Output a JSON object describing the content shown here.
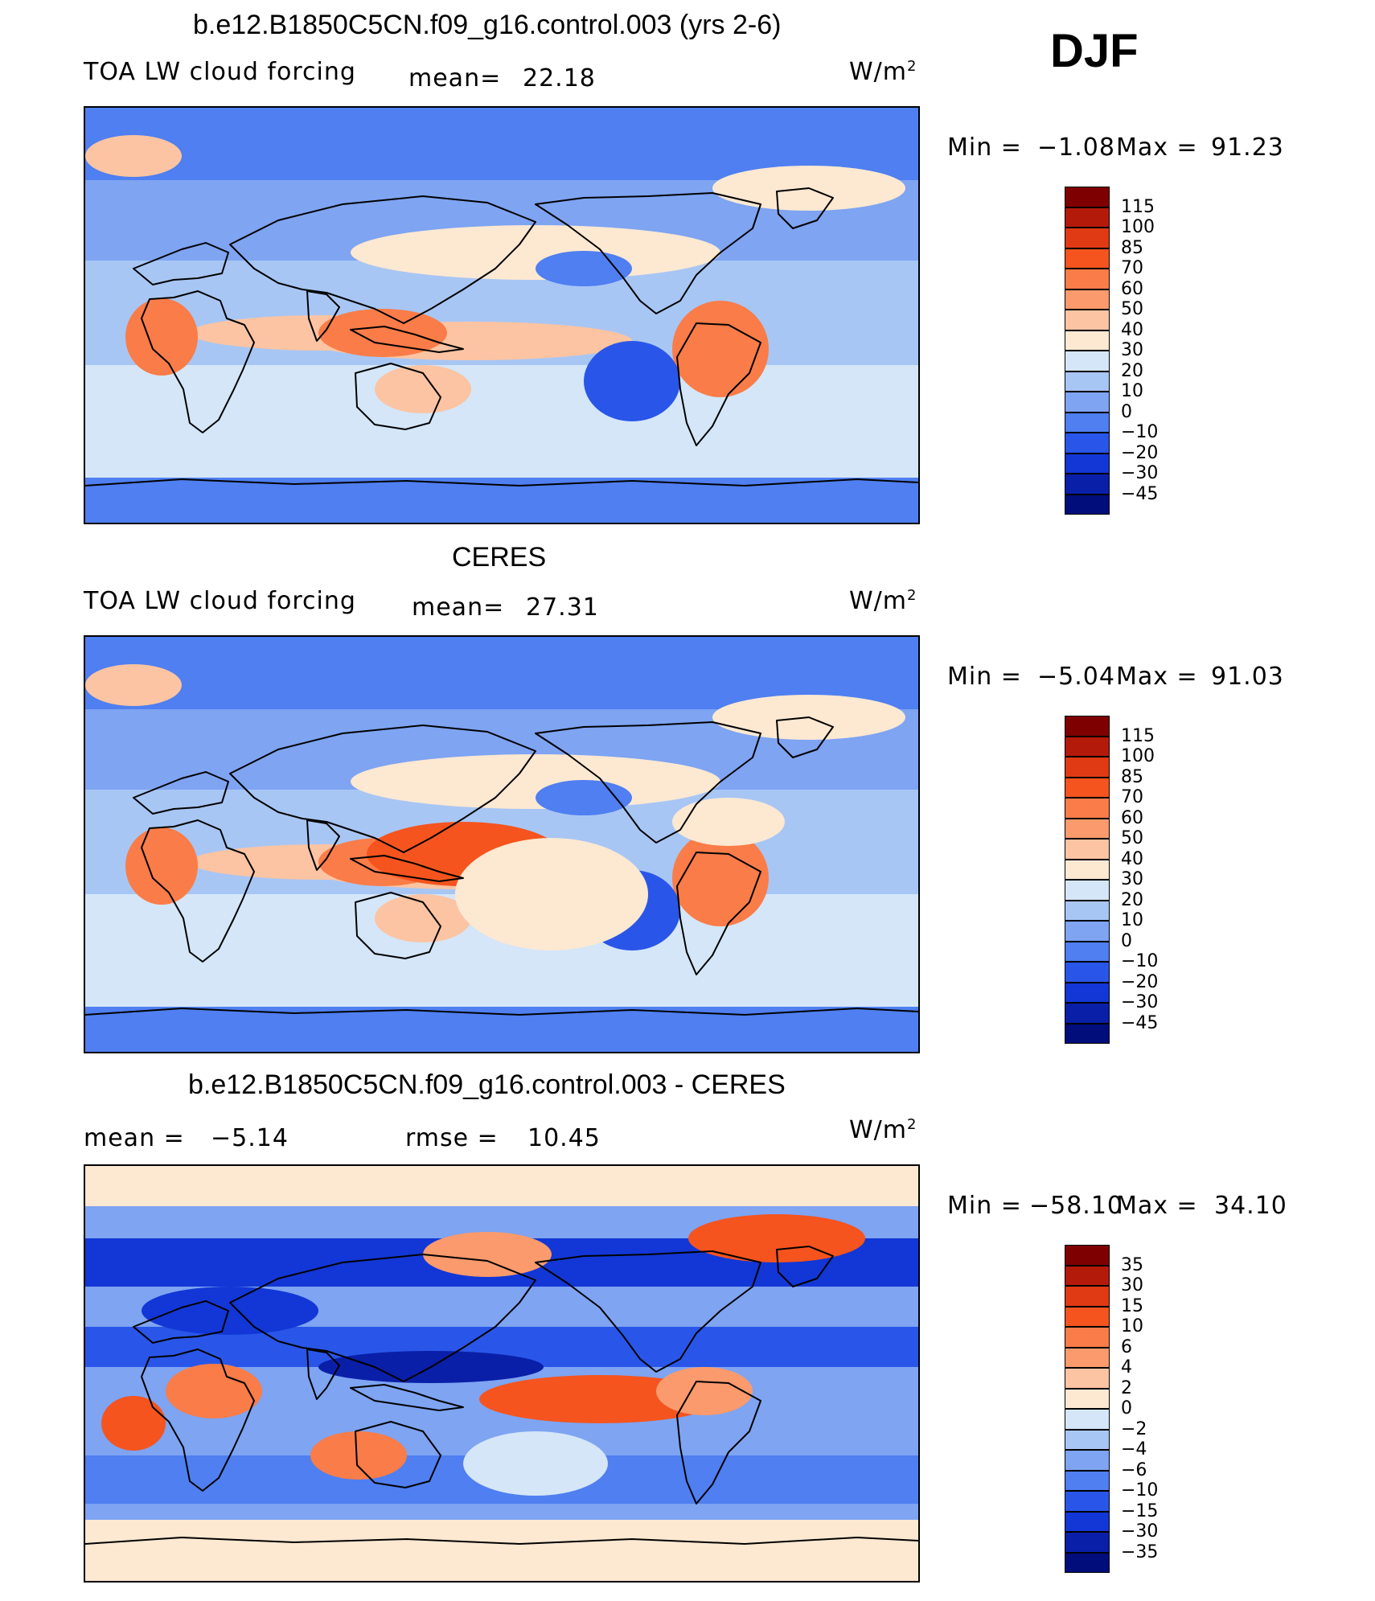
{
  "season": "DJF",
  "units_main": "W/m",
  "units_sup": "2",
  "panels": [
    {
      "title": "b.e12.B1850C5CN.f09_g16.control.003 (yrs 2-6)",
      "left_label": "TOA LW cloud forcing",
      "mid_label": "mean=",
      "mid_value": "22.18",
      "min_label": "Min =",
      "min_value": "−1.08",
      "max_label": "Max =",
      "max_value": "91.23",
      "colorbar": [
        "115",
        "100",
        "85",
        "70",
        "60",
        "50",
        "40",
        "30",
        "20",
        "10",
        "0",
        "−10",
        "−20",
        "−30",
        "−45"
      ]
    },
    {
      "title": "CERES",
      "left_label": "TOA LW cloud forcing",
      "mid_label": "mean=",
      "mid_value": "27.31",
      "min_label": "Min =",
      "min_value": "−5.04",
      "max_label": "Max =",
      "max_value": "91.03",
      "colorbar": [
        "115",
        "100",
        "85",
        "70",
        "60",
        "50",
        "40",
        "30",
        "20",
        "10",
        "0",
        "−10",
        "−20",
        "−30",
        "−45"
      ]
    },
    {
      "title": "b.e12.B1850C5CN.f09_g16.control.003 - CERES",
      "left_label": "mean =",
      "left_value": "−5.14",
      "mid_label": "rmse =",
      "mid_value": "10.45",
      "min_label": "Min =",
      "min_value": "−58.10",
      "max_label": "Max =",
      "max_value": "34.10",
      "colorbar": [
        "35",
        "30",
        "15",
        "10",
        "6",
        "4",
        "2",
        "0",
        "−2",
        "−4",
        "−6",
        "−10",
        "−15",
        "−30",
        "−35"
      ]
    }
  ],
  "chart_data": [
    {
      "type": "heatmap",
      "title": "b.e12.B1850C5CN.f09_g16.control.003 (yrs 2-6)",
      "variable": "TOA LW cloud forcing",
      "units": "W/m2",
      "mean": 22.18,
      "min": -1.08,
      "max": 91.23,
      "levels": [
        115,
        100,
        85,
        70,
        60,
        50,
        40,
        30,
        20,
        10,
        0,
        -10,
        -20,
        -30,
        -45
      ]
    },
    {
      "type": "heatmap",
      "title": "CERES",
      "variable": "TOA LW cloud forcing",
      "units": "W/m2",
      "mean": 27.31,
      "min": -5.04,
      "max": 91.03,
      "levels": [
        115,
        100,
        85,
        70,
        60,
        50,
        40,
        30,
        20,
        10,
        0,
        -10,
        -20,
        -30,
        -45
      ]
    },
    {
      "type": "heatmap",
      "title": "b.e12.B1850C5CN.f09_g16.control.003 - CERES",
      "units": "W/m2",
      "mean": -5.14,
      "rmse": 10.45,
      "min": -58.1,
      "max": 34.1,
      "levels": [
        35,
        30,
        15,
        10,
        6,
        4,
        2,
        0,
        -2,
        -4,
        -6,
        -10,
        -15,
        -30,
        -35
      ]
    }
  ],
  "colors": [
    "#7f0000",
    "#b41a0a",
    "#e03a14",
    "#f5541e",
    "#fa7c48",
    "#fb9a6c",
    "#fcc4a2",
    "#fde8d2",
    "#d4e6f8",
    "#a8c6f4",
    "#7ea4f2",
    "#4f7ff0",
    "#2956e8",
    "#1237d6",
    "#0a1fa8",
    "#000d7a"
  ]
}
